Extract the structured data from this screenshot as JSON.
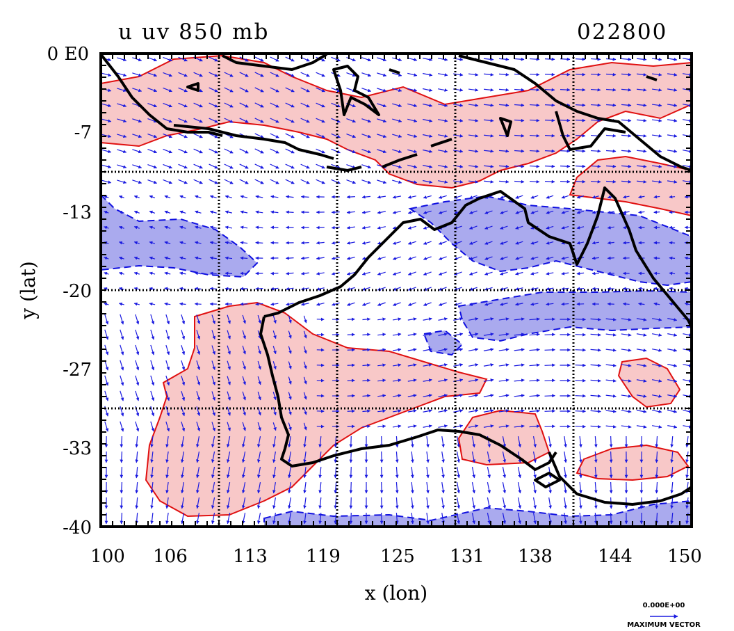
{
  "plot": {
    "title": "u uv 850 mb",
    "date": "022800",
    "xlabel": "x (lon)",
    "ylabel": "y (lat)",
    "corner_label": "0 E0",
    "xticks": [
      "100",
      "106",
      "113",
      "119",
      "125",
      "131",
      "138",
      "144",
      "150"
    ],
    "yticks": [
      "-7",
      "-13",
      "-20",
      "-27",
      "-33",
      "-40"
    ],
    "lon_range": [
      100,
      150
    ],
    "lat_range": [
      -40,
      0
    ],
    "grid_lons": [
      110,
      120,
      130,
      140
    ],
    "grid_lats": [
      -10,
      -20,
      -30
    ],
    "vector_scale_label": "0.000E+00",
    "vector_caption": "MAXIMUM VECTOR"
  },
  "colors": {
    "positive_fill": "#f8c8c8",
    "positive_line": "#e01010",
    "negative_fill": "#aaaaee",
    "negative_line": "#1010e0",
    "vector": "#1a1ae0",
    "coast": "#000000"
  }
}
